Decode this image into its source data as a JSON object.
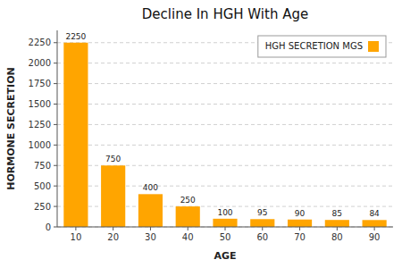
{
  "chart_data": {
    "type": "bar",
    "title": "Decline In HGH With Age",
    "xlabel": "AGE",
    "ylabel": "HORMONE SECRETION",
    "categories": [
      10,
      20,
      30,
      40,
      50,
      60,
      70,
      80,
      90
    ],
    "series": [
      {
        "name": "HGH SECRETION MGS",
        "color": "#FFA500",
        "values": [
          2250,
          750,
          400,
          250,
          100,
          95,
          90,
          85,
          84
        ]
      }
    ],
    "ylim": [
      0,
      2400
    ],
    "yticks": [
      0,
      250,
      500,
      750,
      1000,
      1250,
      1500,
      1750,
      2000,
      2250
    ],
    "grid": true,
    "legend": "top-right",
    "data_labels": true
  }
}
